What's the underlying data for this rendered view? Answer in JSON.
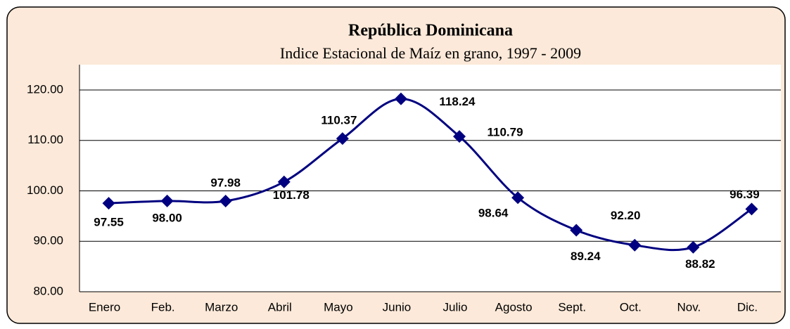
{
  "chart_data": {
    "type": "line",
    "title": "República Dominicana",
    "subtitle": "Indice Estacional de Maíz en grano,  1997 - 2009",
    "categories": [
      "Enero",
      "Feb.",
      "Marzo",
      "Abril",
      "Mayo",
      "Junio",
      "Julio",
      "Agosto",
      "Sept.",
      "Oct.",
      "Nov.",
      "Dic."
    ],
    "series": [
      {
        "name": "Indice Estacional",
        "color": "#000080",
        "values": [
          97.55,
          98.0,
          97.98,
          101.78,
          110.37,
          118.24,
          110.79,
          98.64,
          92.2,
          89.24,
          88.82,
          96.39
        ],
        "value_labels": [
          "97.55",
          "98.00",
          "97.98",
          "101.78",
          "110.37",
          "118.24",
          "110.79",
          "98.64",
          "92.20",
          "89.24",
          "88.82",
          "96.39"
        ]
      }
    ],
    "ylim": [
      80,
      120
    ],
    "yticks": [
      {
        "value": 80,
        "label": "80.00"
      },
      {
        "value": 90,
        "label": "90.00"
      },
      {
        "value": 100,
        "label": "100.00"
      },
      {
        "value": 110,
        "label": "110.00"
      },
      {
        "value": 120,
        "label": "120.00"
      }
    ],
    "grid": true,
    "smooth": true
  }
}
